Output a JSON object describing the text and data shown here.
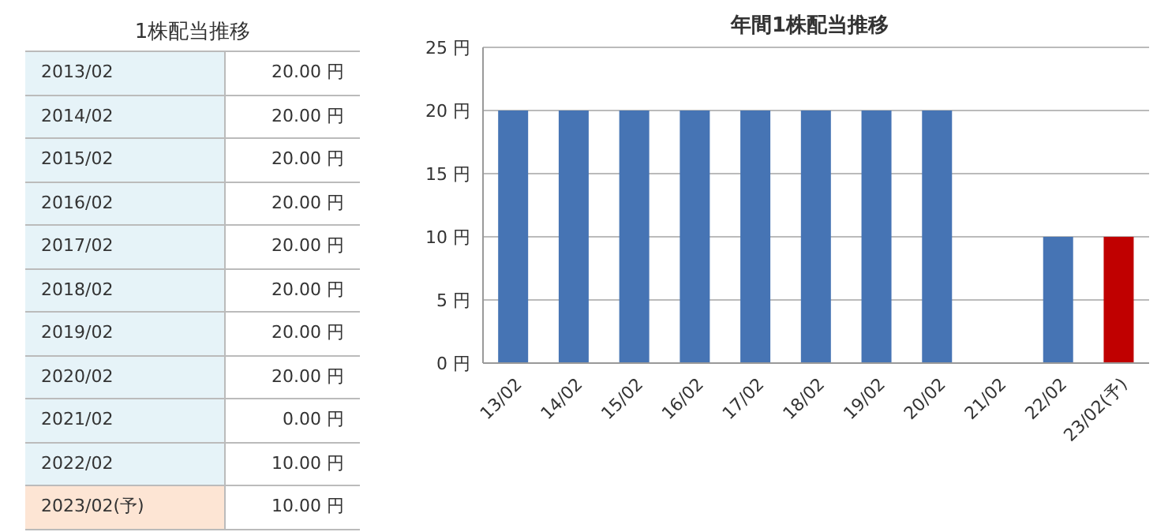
{
  "chart_data": [
    {
      "type": "other",
      "title": "1株配当推移",
      "categories": [
        "2013/02",
        "2014/02",
        "2015/02",
        "2016/02",
        "2017/02",
        "2018/02",
        "2019/02",
        "2020/02",
        "2021/02",
        "2022/02",
        "2023/02(予)"
      ],
      "value_labels": [
        "20.00 円",
        "20.00 円",
        "20.00 円",
        "20.00 円",
        "20.00 円",
        "20.00 円",
        "20.00 円",
        "20.00 円",
        "0.00 円",
        "10.00 円",
        "10.00 円"
      ],
      "colors": [
        "#e6f3f8",
        "#e6f3f8",
        "#e6f3f8",
        "#e6f3f8",
        "#e6f3f8",
        "#e6f3f8",
        "#e6f3f8",
        "#e6f3f8",
        "#e6f3f8",
        "#e6f3f8",
        "#fde5d4"
      ]
    },
    {
      "type": "bar",
      "title": "年間1株配当推移",
      "categories": [
        "13/02",
        "14/02",
        "15/02",
        "16/02",
        "17/02",
        "18/02",
        "19/02",
        "20/02",
        "21/02",
        "22/02",
        "23/02(予)"
      ],
      "values": [
        20,
        20,
        20,
        20,
        20,
        20,
        20,
        20,
        0,
        10,
        10
      ],
      "colors": [
        "#4674b4",
        "#4674b4",
        "#4674b4",
        "#4674b4",
        "#4674b4",
        "#4674b4",
        "#4674b4",
        "#4674b4",
        "#4674b4",
        "#4674b4",
        "#c00000"
      ],
      "ylim": [
        0,
        25
      ],
      "yticks": [
        {
          "value": 0,
          "label": "0 円"
        },
        {
          "value": 5,
          "label": "5 円"
        },
        {
          "value": 10,
          "label": "10 円"
        },
        {
          "value": 15,
          "label": "15 円"
        },
        {
          "value": 20,
          "label": "20 円"
        },
        {
          "value": 25,
          "label": "25 円"
        }
      ],
      "grid": "y"
    }
  ]
}
